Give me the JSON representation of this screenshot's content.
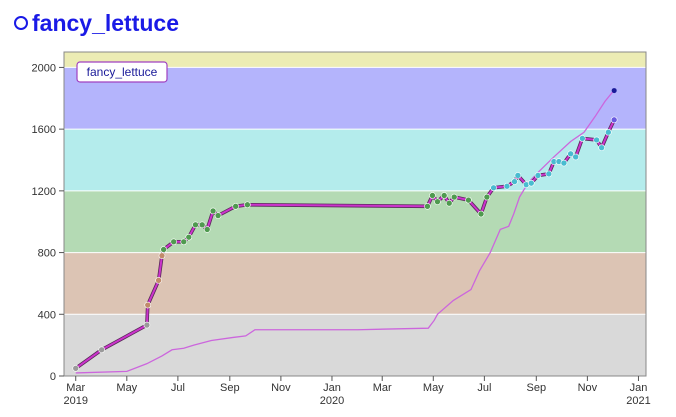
{
  "page": {
    "title": "fancy_lettuce"
  },
  "chart_data": {
    "type": "line",
    "title": "fancy_lettuce",
    "legend": {
      "label": "fancy_lettuce",
      "placement": "top-left"
    },
    "ylim": [
      0,
      2100
    ],
    "yticks": [
      0,
      400,
      800,
      1200,
      1600,
      2000
    ],
    "xlim": [
      "2019-02-15",
      "2021-01-10"
    ],
    "xticks": [
      {
        "date": "2019-03-01",
        "label": "Mar",
        "year": "2019"
      },
      {
        "date": "2019-05-01",
        "label": "May",
        "year": ""
      },
      {
        "date": "2019-07-01",
        "label": "Jul",
        "year": ""
      },
      {
        "date": "2019-09-01",
        "label": "Sep",
        "year": ""
      },
      {
        "date": "2019-11-01",
        "label": "Nov",
        "year": ""
      },
      {
        "date": "2020-01-01",
        "label": "Jan",
        "year": "2020"
      },
      {
        "date": "2020-03-01",
        "label": "Mar",
        "year": ""
      },
      {
        "date": "2020-05-01",
        "label": "May",
        "year": ""
      },
      {
        "date": "2020-07-01",
        "label": "Jul",
        "year": ""
      },
      {
        "date": "2020-09-01",
        "label": "Sep",
        "year": ""
      },
      {
        "date": "2020-11-01",
        "label": "Nov",
        "year": ""
      },
      {
        "date": "2021-01-01",
        "label": "Jan",
        "year": "2021"
      }
    ],
    "bands": [
      {
        "from": 0,
        "to": 400,
        "color": "#d9d9d9"
      },
      {
        "from": 400,
        "to": 800,
        "color": "#dcc4b4"
      },
      {
        "from": 800,
        "to": 1200,
        "color": "#b4dab4"
      },
      {
        "from": 1200,
        "to": 1600,
        "color": "#b4ecec"
      },
      {
        "from": 1600,
        "to": 2000,
        "color": "#b4b4fc"
      },
      {
        "from": 2000,
        "to": 2100,
        "color": "#ececb4"
      }
    ],
    "series": [
      {
        "name": "fancy_lettuce",
        "color": "#cc33cc",
        "points": [
          [
            "2019-03-01",
            50
          ],
          [
            "2019-04-01",
            170
          ],
          [
            "2019-05-25",
            330
          ],
          [
            "2019-05-26",
            460
          ],
          [
            "2019-06-08",
            620
          ],
          [
            "2019-06-12",
            780
          ],
          [
            "2019-06-14",
            820
          ],
          [
            "2019-06-26",
            870
          ],
          [
            "2019-07-08",
            870
          ],
          [
            "2019-07-14",
            900
          ],
          [
            "2019-07-22",
            980
          ],
          [
            "2019-07-30",
            980
          ],
          [
            "2019-08-05",
            950
          ],
          [
            "2019-08-12",
            1070
          ],
          [
            "2019-08-18",
            1040
          ],
          [
            "2019-09-08",
            1100
          ],
          [
            "2019-09-22",
            1110
          ],
          [
            "2020-04-24",
            1100
          ],
          [
            "2020-04-30",
            1170
          ],
          [
            "2020-05-06",
            1130
          ],
          [
            "2020-05-14",
            1170
          ],
          [
            "2020-05-20",
            1120
          ],
          [
            "2020-05-26",
            1160
          ],
          [
            "2020-06-12",
            1140
          ],
          [
            "2020-06-27",
            1050
          ],
          [
            "2020-07-04",
            1160
          ],
          [
            "2020-07-12",
            1220
          ],
          [
            "2020-07-28",
            1230
          ],
          [
            "2020-08-06",
            1260
          ],
          [
            "2020-08-10",
            1300
          ],
          [
            "2020-08-20",
            1240
          ],
          [
            "2020-08-26",
            1250
          ],
          [
            "2020-09-03",
            1300
          ],
          [
            "2020-09-16",
            1310
          ],
          [
            "2020-09-22",
            1390
          ],
          [
            "2020-09-28",
            1390
          ],
          [
            "2020-10-04",
            1380
          ],
          [
            "2020-10-12",
            1440
          ],
          [
            "2020-10-18",
            1420
          ],
          [
            "2020-10-26",
            1540
          ],
          [
            "2020-11-12",
            1530
          ],
          [
            "2020-11-18",
            1480
          ],
          [
            "2020-11-26",
            1580
          ],
          [
            "2020-12-03",
            1660
          ]
        ]
      },
      {
        "name": "",
        "color": "#cc66dd",
        "points": [
          [
            "2019-03-01",
            20
          ],
          [
            "2019-05-01",
            30
          ],
          [
            "2019-05-25",
            80
          ],
          [
            "2019-06-12",
            130
          ],
          [
            "2019-06-24",
            170
          ],
          [
            "2019-07-08",
            180
          ],
          [
            "2019-07-20",
            200
          ],
          [
            "2019-08-10",
            230
          ],
          [
            "2019-09-05",
            250
          ],
          [
            "2019-09-20",
            260
          ],
          [
            "2019-10-01",
            300
          ],
          [
            "2020-02-01",
            300
          ],
          [
            "2020-04-25",
            310
          ],
          [
            "2020-05-02",
            360
          ],
          [
            "2020-05-06",
            400
          ],
          [
            "2020-05-25",
            490
          ],
          [
            "2020-06-15",
            560
          ],
          [
            "2020-06-25",
            680
          ],
          [
            "2020-07-08",
            800
          ],
          [
            "2020-07-20",
            950
          ],
          [
            "2020-07-30",
            970
          ],
          [
            "2020-08-05",
            1050
          ],
          [
            "2020-08-12",
            1160
          ],
          [
            "2020-08-22",
            1250
          ],
          [
            "2020-09-05",
            1330
          ],
          [
            "2020-09-22",
            1420
          ],
          [
            "2020-10-12",
            1520
          ],
          [
            "2020-10-28",
            1580
          ],
          [
            "2020-11-10",
            1680
          ],
          [
            "2020-11-22",
            1780
          ],
          [
            "2020-12-01",
            1840
          ]
        ],
        "end_marker": [
          "2020-12-03",
          1850
        ]
      }
    ]
  }
}
